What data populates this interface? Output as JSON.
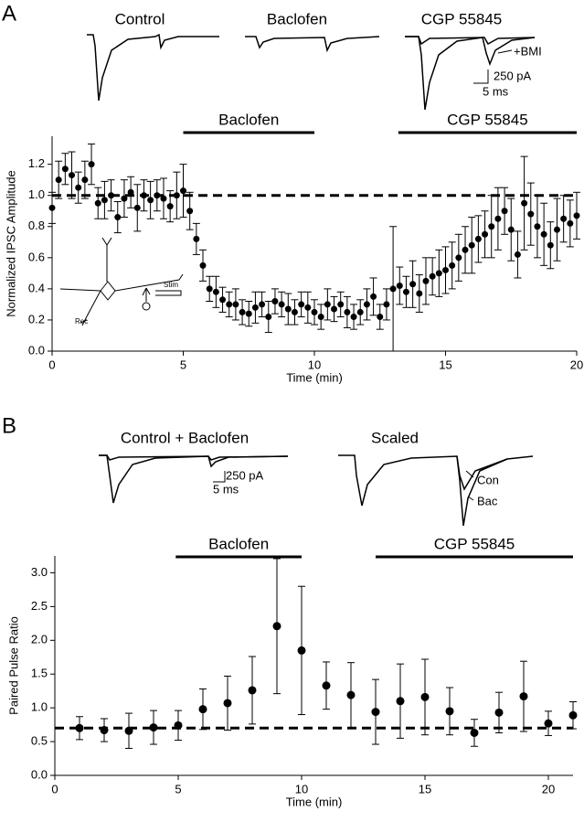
{
  "chart_data": [
    {
      "type": "scatter",
      "panel_label": "A",
      "xlabel": "Time (min)",
      "ylabel": "Normalized IPSC Amplitude",
      "xlim": [
        0,
        20
      ],
      "ylim": [
        0,
        1.38
      ],
      "xticks": [
        0,
        5,
        10,
        15,
        20
      ],
      "yticks": [
        {
          "value": 0,
          "label": "0.0"
        },
        0.2,
        0.4,
        0.6,
        0.8,
        {
          "value": 1,
          "label": "1.0"
        },
        1.2
      ],
      "reference_line": 1.0,
      "periods": [
        {
          "label": "Baclofen",
          "start": 5,
          "end": 10
        },
        {
          "label": "CGP 55845",
          "start": 13.2,
          "end": 20
        }
      ],
      "trace_labels": [
        "Control",
        "Baclofen",
        "CGP 55845",
        "+BMI",
        "250 pA",
        "5 ms"
      ],
      "inset_labels": [
        "Rec",
        "Stim"
      ],
      "color": "#000000",
      "x": [
        0,
        0.25,
        0.5,
        0.75,
        1,
        1.25,
        1.5,
        1.75,
        2,
        2.25,
        2.5,
        2.75,
        3,
        3.25,
        3.5,
        3.75,
        4,
        4.25,
        4.5,
        4.75,
        5,
        5.25,
        5.5,
        5.75,
        6,
        6.25,
        6.5,
        6.75,
        7,
        7.25,
        7.5,
        7.75,
        8,
        8.25,
        8.5,
        8.75,
        9,
        9.25,
        9.5,
        9.75,
        10,
        10.25,
        10.5,
        10.75,
        11,
        11.25,
        11.5,
        11.75,
        12,
        12.25,
        12.5,
        12.75,
        13,
        13.25,
        13.5,
        13.75,
        14,
        14.25,
        14.5,
        14.75,
        15,
        15.25,
        15.5,
        15.75,
        16,
        16.25,
        16.5,
        16.75,
        17,
        17.25,
        17.5,
        17.75,
        18,
        18.25,
        18.5,
        18.75,
        19,
        19.25,
        19.5,
        19.75,
        20
      ],
      "values": [
        0.92,
        1.1,
        1.17,
        1.13,
        1.05,
        1.1,
        1.2,
        0.95,
        0.97,
        1.0,
        0.86,
        0.98,
        1.02,
        0.92,
        1.0,
        0.97,
        1.0,
        0.98,
        0.93,
        1.0,
        1.03,
        0.9,
        0.72,
        0.55,
        0.4,
        0.38,
        0.33,
        0.3,
        0.3,
        0.25,
        0.24,
        0.28,
        0.3,
        0.22,
        0.32,
        0.3,
        0.27,
        0.25,
        0.3,
        0.28,
        0.25,
        0.22,
        0.3,
        0.27,
        0.3,
        0.25,
        0.22,
        0.25,
        0.3,
        0.35,
        0.22,
        0.3,
        0.4,
        0.42,
        0.38,
        0.43,
        0.37,
        0.45,
        0.48,
        0.5,
        0.52,
        0.55,
        0.6,
        0.65,
        0.68,
        0.72,
        0.75,
        0.8,
        0.85,
        0.9,
        0.78,
        0.62,
        0.95,
        0.88,
        0.8,
        0.75,
        0.68,
        0.78,
        0.85,
        0.82,
        0.87
      ],
      "errors": [
        0.1,
        0.12,
        0.1,
        0.15,
        0.1,
        0.12,
        0.13,
        0.1,
        0.12,
        0.1,
        0.1,
        0.12,
        0.1,
        0.15,
        0.1,
        0.12,
        0.1,
        0.13,
        0.1,
        0.15,
        0.17,
        0.12,
        0.1,
        0.1,
        0.08,
        0.1,
        0.08,
        0.08,
        0.1,
        0.08,
        0.08,
        0.1,
        0.08,
        0.1,
        0.08,
        0.08,
        0.1,
        0.08,
        0.08,
        0.1,
        0.08,
        0.08,
        0.1,
        0.08,
        0.08,
        0.1,
        0.08,
        0.08,
        0.1,
        0.12,
        0.08,
        0.1,
        0.4,
        0.12,
        0.1,
        0.15,
        0.12,
        0.15,
        0.12,
        0.15,
        0.15,
        0.15,
        0.15,
        0.15,
        0.18,
        0.15,
        0.15,
        0.2,
        0.2,
        0.15,
        0.2,
        0.15,
        0.3,
        0.2,
        0.2,
        0.2,
        0.15,
        0.2,
        0.15,
        0.15,
        0.15
      ]
    },
    {
      "type": "scatter",
      "panel_label": "B",
      "xlabel": "Time (min)",
      "ylabel": "Paired Pulse Ratio",
      "xlim": [
        0,
        21
      ],
      "ylim": [
        0,
        3.25
      ],
      "xticks": [
        0,
        5,
        10,
        15,
        20
      ],
      "yticks": [
        {
          "value": 0,
          "label": "0.0"
        },
        0.5,
        {
          "value": 1,
          "label": "1.0"
        },
        1.5,
        {
          "value": 2,
          "label": "2.0"
        },
        2.5,
        {
          "value": 3,
          "label": "3.0"
        }
      ],
      "reference_line": 0.7,
      "periods": [
        {
          "label": "Baclofen",
          "start": 4.9,
          "end": 10
        },
        {
          "label": "CGP 55845",
          "start": 13,
          "end": 21
        }
      ],
      "trace_labels": [
        "Control + Baclofen",
        "Scaled",
        "250 pA",
        "5 ms",
        "Con",
        "Bac"
      ],
      "color": "#000000",
      "x": [
        1,
        2,
        3,
        4,
        5,
        6,
        7,
        8,
        9,
        10,
        11,
        12,
        13,
        14,
        15,
        16,
        17,
        18,
        19,
        20,
        21
      ],
      "values": [
        0.7,
        0.67,
        0.66,
        0.71,
        0.74,
        0.98,
        1.07,
        1.26,
        2.21,
        1.85,
        1.33,
        1.19,
        0.94,
        1.1,
        1.16,
        0.95,
        0.63,
        0.93,
        1.17,
        0.77,
        0.89
      ],
      "errors": [
        0.17,
        0.17,
        0.26,
        0.25,
        0.22,
        0.3,
        0.4,
        0.5,
        1.0,
        0.95,
        0.35,
        0.48,
        0.48,
        0.55,
        0.56,
        0.35,
        0.2,
        0.3,
        0.52,
        0.18,
        0.2
      ]
    }
  ]
}
